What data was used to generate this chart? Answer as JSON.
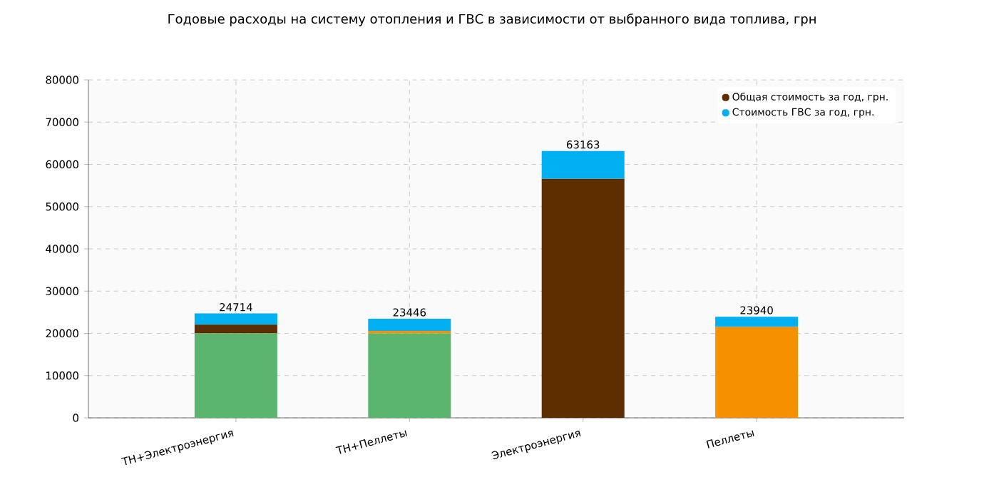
{
  "chart_data": {
    "type": "bar",
    "stacked": true,
    "title": "Годовые расходы на систему отопления и ГВС в зависимости от выбранного вида топлива, грн",
    "categories": [
      "ТН+Электроэнергия",
      "ТН+Пеллеты",
      "Электроэнергия",
      "Пеллеты"
    ],
    "series": [
      {
        "color": "#5cb56e",
        "values": [
          20000,
          20000,
          0,
          0
        ]
      },
      {
        "name": "Общая стоимость за год, грн.",
        "color": "#5c2e00",
        "values": [
          2060,
          0,
          56600,
          0
        ]
      },
      {
        "color": "#f79000",
        "values": [
          0,
          600,
          0,
          21500
        ]
      },
      {
        "name": "Стоимость ГВС за год, грн.",
        "color": "#00b0f0",
        "values": [
          2654,
          2846,
          6563,
          2440
        ]
      }
    ],
    "totals": [
      "24714",
      "23446",
      "63163",
      "23940"
    ],
    "ylim": [
      0,
      80000
    ],
    "yticks": [
      0,
      10000,
      20000,
      30000,
      40000,
      50000,
      60000,
      70000,
      80000
    ],
    "grid": true,
    "legend": "top right"
  }
}
